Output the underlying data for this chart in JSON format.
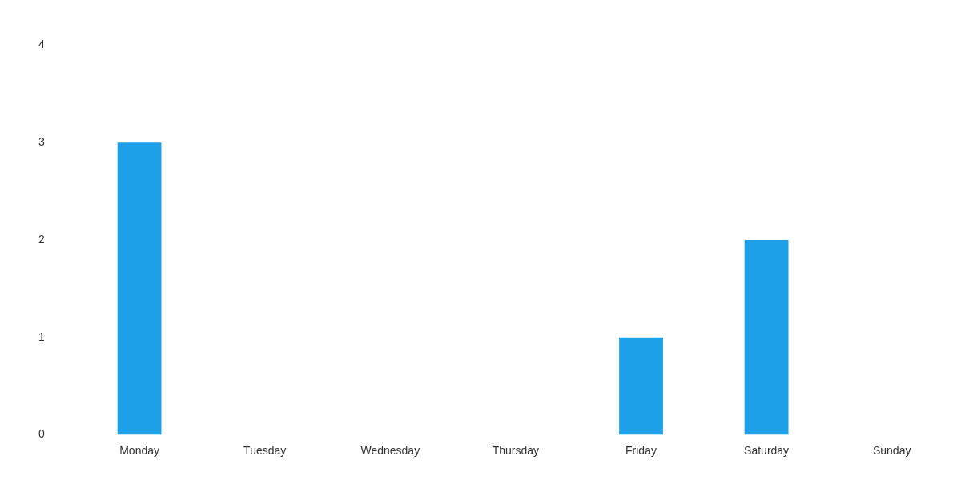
{
  "chart_data": {
    "type": "bar",
    "categories": [
      "Monday",
      "Tuesday",
      "Wednesday",
      "Thursday",
      "Friday",
      "Saturday",
      "Sunday"
    ],
    "values": [
      3,
      0,
      0,
      0,
      1,
      2,
      0
    ],
    "color": "#1ea0e8",
    "ylim": [
      0,
      4
    ],
    "yticks": [
      0,
      1,
      2,
      3,
      4
    ],
    "grid": false,
    "legend": false
  }
}
